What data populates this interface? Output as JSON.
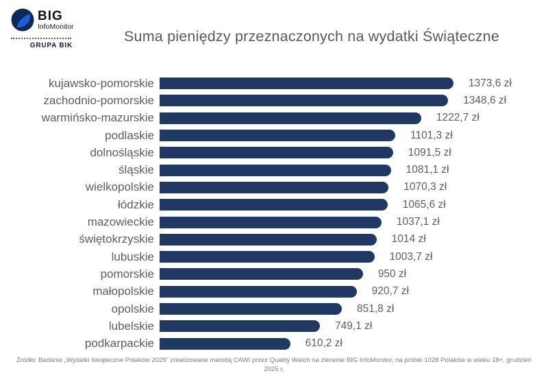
{
  "header": {
    "title": "Suma pieniędzy przeznaczonych na wydatki Świąteczne",
    "logo": {
      "big": "BIG",
      "infomonitor": "InfoMonitor",
      "grupa": "GRUPA BIK"
    }
  },
  "chart_data": {
    "type": "bar",
    "orientation": "horizontal",
    "title": "Suma pieniędzy przeznaczonych na wydatki Świąteczne",
    "categories": [
      "kujawsko-pomorskie",
      "zachodnio-pomorskie",
      "warmińsko-mazurskie",
      "podlaskie",
      "dolnośląskie",
      "śląskie",
      "wielkopolskie",
      "łódzkie",
      "mazowieckie",
      "świętokrzyskie",
      "lubuskie",
      "pomorskie",
      "małopolskie",
      "opolskie",
      "lubelskie",
      "podkarpackie"
    ],
    "values": [
      1373.6,
      1348.6,
      1222.7,
      1101.3,
      1091.5,
      1081.1,
      1070.3,
      1065.6,
      1037.1,
      1014,
      1003.7,
      950,
      920.7,
      851.8,
      749.1,
      610.2
    ],
    "value_labels": [
      "1373,6 zł",
      "1348,6 zł",
      "1222,7 zł",
      "1101,3 zł",
      "1091,5 zł",
      "1081,1 zł",
      "1070,3 zł",
      "1065,6 zł",
      "1037,1 zł",
      "1014 zł",
      "1003,7 zł",
      "950 zł",
      "920,7 zł",
      "851,8 zł",
      "749,1 zł",
      "610,2 zł"
    ],
    "unit": "zł",
    "xlim": [
      0,
      1373.6
    ],
    "bar_color": "#1f3864",
    "label_color": "#5d5d5d",
    "grid": false,
    "legend": false
  },
  "footer": {
    "source": "Źródło: Badanie „Wydatki świąteczne Polaków 2025” zrealizowane metodą CAWI przez Quality Watch na zlecenie BIG InfoMonitor, na próbie 1028 Polaków w wieku 18+, grudzień 2025 r."
  }
}
